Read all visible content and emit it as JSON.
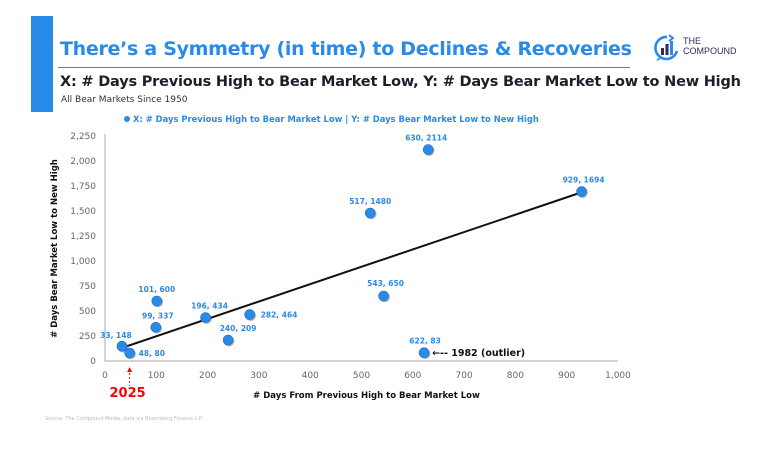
{
  "header": {
    "title": "There’s a Symmetry (in time) to Declines & Recoveries",
    "subtitle": "X: # Days Previous High to Bear Market Low, Y: # Days Bear Market Low to New High",
    "note": "All Bear Markets Since 1950",
    "logo_line1": "THE",
    "logo_line2": "COMPOUND",
    "accent_color": "#2a8ae8"
  },
  "footer": {
    "source": "Source: The Compound Media, data via Bloomberg Finance L.P."
  },
  "chart_data": {
    "type": "scatter",
    "title": "",
    "legend": "X: # Days Previous High to Bear Market Low | Y: # Days Bear Market Low to New High",
    "legend_position": "top",
    "xlabel": "# Days From Previous High to Bear Market Low",
    "ylabel": "# Days Bear Market Low to New High",
    "xlim": [
      0,
      1000
    ],
    "ylim": [
      0,
      2250
    ],
    "xticks": [
      0,
      100,
      200,
      300,
      400,
      500,
      600,
      700,
      800,
      900,
      1000
    ],
    "xtick_labels": [
      "0",
      "100",
      "200",
      "300",
      "400",
      "500",
      "600",
      "700",
      "800",
      "900",
      "1,000"
    ],
    "yticks": [
      0,
      250,
      500,
      750,
      1000,
      1250,
      1500,
      1750,
      2000,
      2250
    ],
    "ytick_labels": [
      "0",
      "250",
      "500",
      "750",
      "1,000",
      "1,250",
      "1,500",
      "1,750",
      "2,000",
      "2,250"
    ],
    "grid": false,
    "point_color": "#2a8ae8",
    "points": [
      {
        "x": 33,
        "y": 148,
        "label": "33, 148"
      },
      {
        "x": 48,
        "y": 80,
        "label": "48, 80"
      },
      {
        "x": 99,
        "y": 337,
        "label": "99, 337"
      },
      {
        "x": 101,
        "y": 600,
        "label": "101, 600"
      },
      {
        "x": 196,
        "y": 434,
        "label": "196, 434"
      },
      {
        "x": 240,
        "y": 209,
        "label": "240, 209"
      },
      {
        "x": 282,
        "y": 464,
        "label": "282, 464"
      },
      {
        "x": 517,
        "y": 1480,
        "label": "517, 1480"
      },
      {
        "x": 543,
        "y": 650,
        "label": "543, 650"
      },
      {
        "x": 622,
        "y": 83,
        "label": "622, 83"
      },
      {
        "x": 630,
        "y": 2114,
        "label": "630, 2114"
      },
      {
        "x": 929,
        "y": 1694,
        "label": "929, 1694"
      }
    ],
    "trendline": {
      "x": [
        38,
        925
      ],
      "y": [
        140,
        1680
      ]
    },
    "annotations": [
      {
        "text": "←-- 1982 (outlier)",
        "x": 622,
        "y": 83
      },
      {
        "text": "2025",
        "x": 48,
        "y": 80,
        "color": "#ff0000"
      }
    ]
  }
}
